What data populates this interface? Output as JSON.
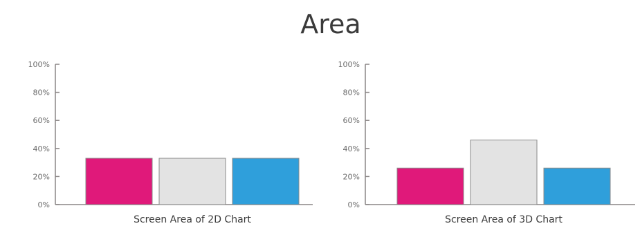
{
  "title": "Area",
  "colors": {
    "axis": "#8a8585",
    "bar_stroke": "#8a8a8a"
  },
  "chart_data": [
    {
      "type": "bar",
      "categories": [
        "Screen Area of 2D Chart"
      ],
      "series": [
        {
          "values": [
            33
          ],
          "color": "#e0197a"
        },
        {
          "values": [
            33
          ],
          "color": "#e3e3e3"
        },
        {
          "values": [
            33
          ],
          "color": "#2f9fdb"
        }
      ],
      "yticks": [
        "0%",
        "20%",
        "40%",
        "60%",
        "80%",
        "100%"
      ],
      "ylim": [
        0,
        100
      ]
    },
    {
      "type": "bar",
      "categories": [
        "Screen Area of 3D Chart"
      ],
      "series": [
        {
          "values": [
            26
          ],
          "color": "#e0197a"
        },
        {
          "values": [
            46
          ],
          "color": "#e3e3e3"
        },
        {
          "values": [
            26
          ],
          "color": "#2f9fdb"
        }
      ],
      "yticks": [
        "0%",
        "20%",
        "40%",
        "60%",
        "80%",
        "100%"
      ],
      "ylim": [
        0,
        100
      ]
    }
  ]
}
